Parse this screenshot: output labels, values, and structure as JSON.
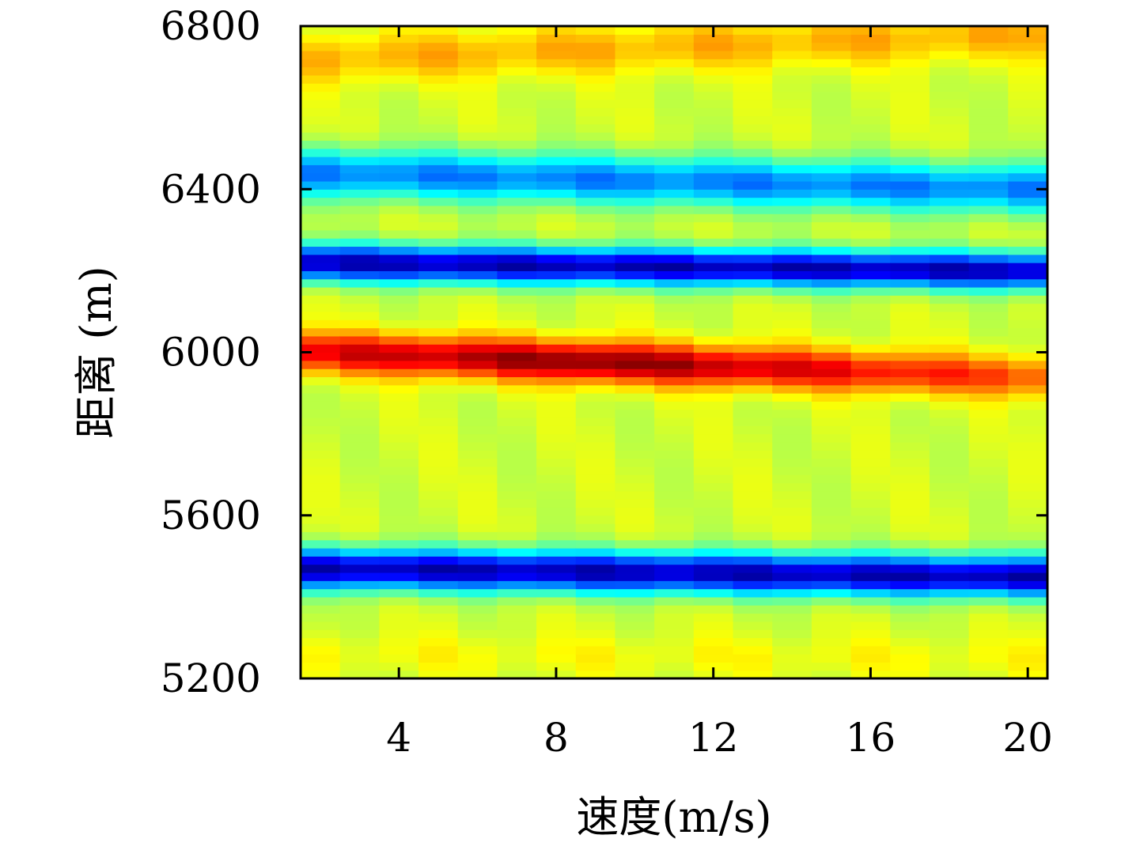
{
  "chart_data": {
    "type": "heatmap",
    "title": "",
    "xlabel": "速度(m/s)",
    "ylabel": "距离 (m)",
    "xlim": [
      1.5,
      20.5
    ],
    "ylim": [
      5200,
      6800
    ],
    "xticks": [
      4,
      8,
      12,
      16,
      20
    ],
    "yticks": [
      5200,
      5600,
      6000,
      6400,
      6800
    ],
    "x_centers": [
      2,
      3,
      4,
      5,
      6,
      7,
      8,
      9,
      10,
      11,
      12,
      13,
      14,
      15,
      16,
      17,
      18,
      19,
      20
    ],
    "y_step": 20,
    "colormap": "jet",
    "value_range": [
      0,
      1
    ],
    "ridges": [
      {
        "feature": "red band (max)",
        "y_at_x2": 6000,
        "y_at_x20": 5940,
        "value_at_x2": 0.9,
        "value_at_x9": 1.0,
        "value_at_x20": 0.8,
        "width_m": 50
      },
      {
        "feature": "dark blue band (min)",
        "y_at_x2": 6220,
        "y_at_x20": 6200,
        "value": 0.05,
        "width_m": 45
      },
      {
        "feature": "blue band (min)",
        "y_at_x2": 6440,
        "y_at_x20": 6400,
        "value": 0.25,
        "width_m": 60
      },
      {
        "feature": "dark blue band (min)",
        "y_at_x2": 5470,
        "y_at_x20": 5450,
        "value": 0.05,
        "width_m": 50
      },
      {
        "feature": "yellow/orange band (max)",
        "y_at_x2": 6720,
        "y_at_x20": 6780,
        "value": 0.7,
        "width_m": 60
      },
      {
        "feature": "yellow band (max)",
        "y_at_x2": 5260,
        "y_at_x20": 5250,
        "value": 0.62,
        "width_m": 50
      }
    ]
  }
}
